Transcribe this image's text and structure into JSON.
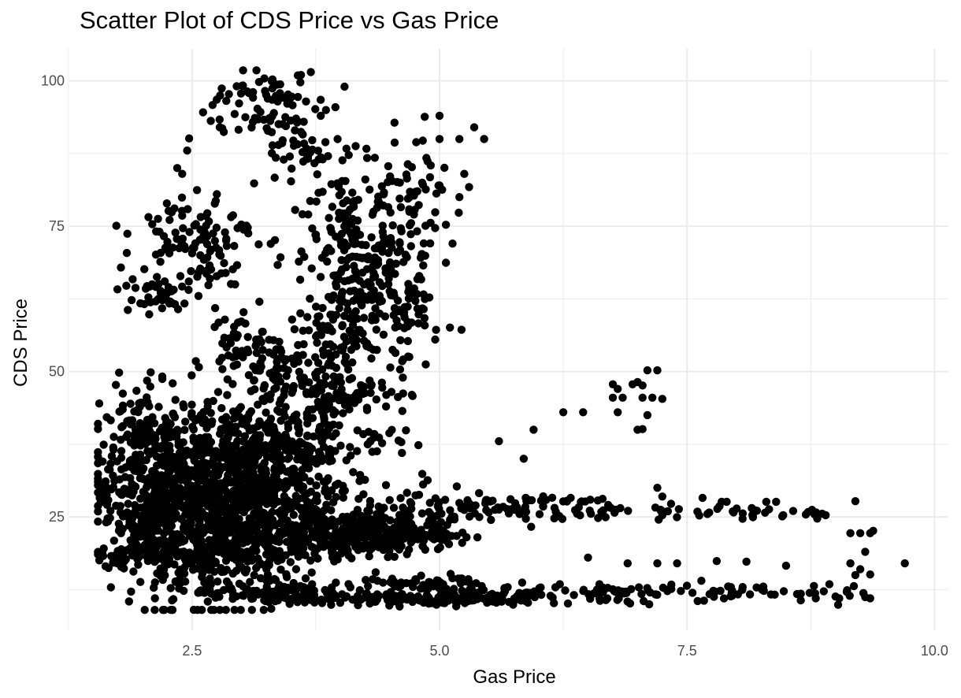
{
  "chart_data": {
    "type": "scatter",
    "title": "Scatter Plot of CDS Price vs Gas Price",
    "xlabel": "Gas Price",
    "ylabel": "CDS Price",
    "xlim": [
      1.26,
      10.14
    ],
    "ylim": [
      5.5,
      105.5
    ],
    "x_ticks": [
      2.5,
      5.0,
      7.5,
      10.0
    ],
    "x_tick_labels": [
      "2.5",
      "5.0",
      "7.5",
      "10.0"
    ],
    "y_ticks": [
      25,
      50,
      75,
      100
    ],
    "y_tick_labels": [
      "25",
      "50",
      "75",
      "100"
    ],
    "x_minor_ticks": [
      1.25,
      3.75,
      6.25,
      8.75
    ],
    "y_minor_ticks": [
      12.5,
      37.5,
      62.5,
      87.5
    ],
    "grid": true,
    "legend": "none",
    "point_color": "#000000",
    "point_clusters": [
      {
        "cx": 2.75,
        "cy": 27.0,
        "sx": 0.45,
        "sy": 8.0,
        "n": 900
      },
      {
        "cx": 2.1,
        "cy": 30.0,
        "sx": 0.3,
        "sy": 7.0,
        "n": 330
      },
      {
        "cx": 3.4,
        "cy": 30.0,
        "sx": 0.4,
        "sy": 7.0,
        "n": 320
      },
      {
        "cx": 3.6,
        "cy": 38.5,
        "sx": 0.55,
        "sy": 2.0,
        "n": 110
      },
      {
        "cx": 3.6,
        "cy": 47.0,
        "sx": 0.35,
        "sy": 4.0,
        "n": 90
      },
      {
        "cx": 4.1,
        "cy": 46.0,
        "sx": 0.3,
        "sy": 1.8,
        "n": 60
      },
      {
        "cx": 3.2,
        "cy": 52.0,
        "sx": 0.25,
        "sy": 3.0,
        "n": 40
      },
      {
        "cx": 2.9,
        "cy": 55.0,
        "sx": 0.15,
        "sy": 2.5,
        "n": 30
      },
      {
        "cx": 2.55,
        "cy": 73.0,
        "sx": 0.3,
        "sy": 4.0,
        "n": 110
      },
      {
        "cx": 2.1,
        "cy": 63.0,
        "sx": 0.18,
        "sy": 1.8,
        "n": 45
      },
      {
        "cx": 3.2,
        "cy": 96.0,
        "sx": 0.28,
        "sy": 2.8,
        "n": 65
      },
      {
        "cx": 3.7,
        "cy": 88.0,
        "sx": 0.25,
        "sy": 4.0,
        "n": 45
      },
      {
        "cx": 4.1,
        "cy": 77.0,
        "sx": 0.2,
        "sy": 5.0,
        "n": 90
      },
      {
        "cx": 4.3,
        "cy": 68.0,
        "sx": 0.3,
        "sy": 4.5,
        "n": 130
      },
      {
        "cx": 4.05,
        "cy": 58.0,
        "sx": 0.25,
        "sy": 4.0,
        "n": 110
      },
      {
        "cx": 4.7,
        "cy": 58.0,
        "sx": 0.2,
        "sy": 4.0,
        "n": 45
      },
      {
        "cx": 4.75,
        "cy": 80.0,
        "sx": 0.2,
        "sy": 5.0,
        "n": 50
      },
      {
        "cx": 3.9,
        "cy": 21.5,
        "sx": 0.6,
        "sy": 1.6,
        "n": 240
      },
      {
        "cx": 4.5,
        "cy": 25.0,
        "sx": 0.35,
        "sy": 2.2,
        "n": 110
      },
      {
        "cx": 3.5,
        "cy": 12.0,
        "sx": 0.55,
        "sy": 0.8,
        "n": 110
      },
      {
        "cx": 4.8,
        "cy": 10.8,
        "sx": 0.7,
        "sy": 0.5,
        "n": 150
      },
      {
        "cx": 4.9,
        "cy": 13.5,
        "sx": 0.35,
        "sy": 0.7,
        "n": 45
      },
      {
        "cx": 1.95,
        "cy": 19.0,
        "sx": 0.2,
        "sy": 1.5,
        "n": 75
      },
      {
        "cx": 1.95,
        "cy": 40.5,
        "sx": 0.15,
        "sy": 2.5,
        "n": 40
      },
      {
        "cx": 4.6,
        "cy": 22.0,
        "sx": 0.3,
        "sy": 1.2,
        "n": 60
      }
    ],
    "point_bands": [
      {
        "x0": 5.0,
        "x1": 9.3,
        "y": 12.0,
        "sy": 1.6,
        "n": 130
      },
      {
        "x0": 5.0,
        "x1": 8.9,
        "y": 26.0,
        "sy": 1.6,
        "n": 100
      },
      {
        "x0": 5.0,
        "x1": 7.0,
        "y": 28.0,
        "sy": 0.8,
        "n": 30
      }
    ],
    "points": [
      [
        1.57,
        30.5
      ],
      [
        1.73,
        47.7
      ],
      [
        1.8,
        46.2
      ],
      [
        2.35,
        85.0
      ],
      [
        2.4,
        84.0
      ],
      [
        2.45,
        88.0
      ],
      [
        2.47,
        90.1
      ],
      [
        2.82,
        91.2
      ],
      [
        2.78,
        92.0
      ],
      [
        2.93,
        94.3
      ],
      [
        3.23,
        100.4
      ],
      [
        3.6,
        101.0
      ],
      [
        3.7,
        101.5
      ],
      [
        4.04,
        99.0
      ],
      [
        3.8,
        94.0
      ],
      [
        3.55,
        93.5
      ],
      [
        5.0,
        94.0
      ],
      [
        4.85,
        93.8
      ],
      [
        5.35,
        92.0
      ],
      [
        5.45,
        90.0
      ],
      [
        5.0,
        90.0
      ],
      [
        5.2,
        90.0
      ],
      [
        5.25,
        84.0
      ],
      [
        5.2,
        80.0
      ],
      [
        5.0,
        82.0
      ],
      [
        5.6,
        38.0
      ],
      [
        5.85,
        35.0
      ],
      [
        5.95,
        40.0
      ],
      [
        6.25,
        43.0
      ],
      [
        6.45,
        43.0
      ],
      [
        6.75,
        47.8
      ],
      [
        6.8,
        47.0
      ],
      [
        6.75,
        45.5
      ],
      [
        6.85,
        45.5
      ],
      [
        6.8,
        43.0
      ],
      [
        6.95,
        47.8
      ],
      [
        7.0,
        48.2
      ],
      [
        7.05,
        47.6
      ],
      [
        7.1,
        50.2
      ],
      [
        7.2,
        50.2
      ],
      [
        7.05,
        45.5
      ],
      [
        7.15,
        45.5
      ],
      [
        7.25,
        45.3
      ],
      [
        7.0,
        40.0
      ],
      [
        7.05,
        40.1
      ],
      [
        7.1,
        42.5
      ],
      [
        7.2,
        30.0
      ],
      [
        7.25,
        28.5
      ],
      [
        7.25,
        25.3
      ],
      [
        8.3,
        27.6
      ],
      [
        8.4,
        27.6
      ],
      [
        7.9,
        27.6
      ],
      [
        7.85,
        27.6
      ],
      [
        8.7,
        25.4
      ],
      [
        8.9,
        25.3
      ],
      [
        9.2,
        27.7
      ],
      [
        9.15,
        22.2
      ],
      [
        9.25,
        22.2
      ],
      [
        9.35,
        22.2
      ],
      [
        9.38,
        22.6
      ],
      [
        9.3,
        19.0
      ],
      [
        9.2,
        15.0
      ],
      [
        9.35,
        15.1
      ],
      [
        9.35,
        11.0
      ],
      [
        9.3,
        11.2
      ],
      [
        9.7,
        17.0
      ],
      [
        9.15,
        17.0
      ],
      [
        9.25,
        16.0
      ],
      [
        8.8,
        11.0
      ],
      [
        9.0,
        11.3
      ],
      [
        6.5,
        18.0
      ],
      [
        6.9,
        17.0
      ],
      [
        7.2,
        17.0
      ],
      [
        7.4,
        17.0
      ],
      [
        7.8,
        17.4
      ],
      [
        8.1,
        17.3
      ],
      [
        8.5,
        16.6
      ],
      [
        3.3,
        9.2
      ],
      [
        2.4,
        76.8
      ],
      [
        2.55,
        81.2
      ],
      [
        2.75,
        80.5
      ],
      [
        3.02,
        60.2
      ],
      [
        3.18,
        62.0
      ],
      [
        3.35,
        53.8
      ],
      [
        4.88,
        31.3
      ],
      [
        4.62,
        36.0
      ],
      [
        4.3,
        38.0
      ]
    ]
  }
}
